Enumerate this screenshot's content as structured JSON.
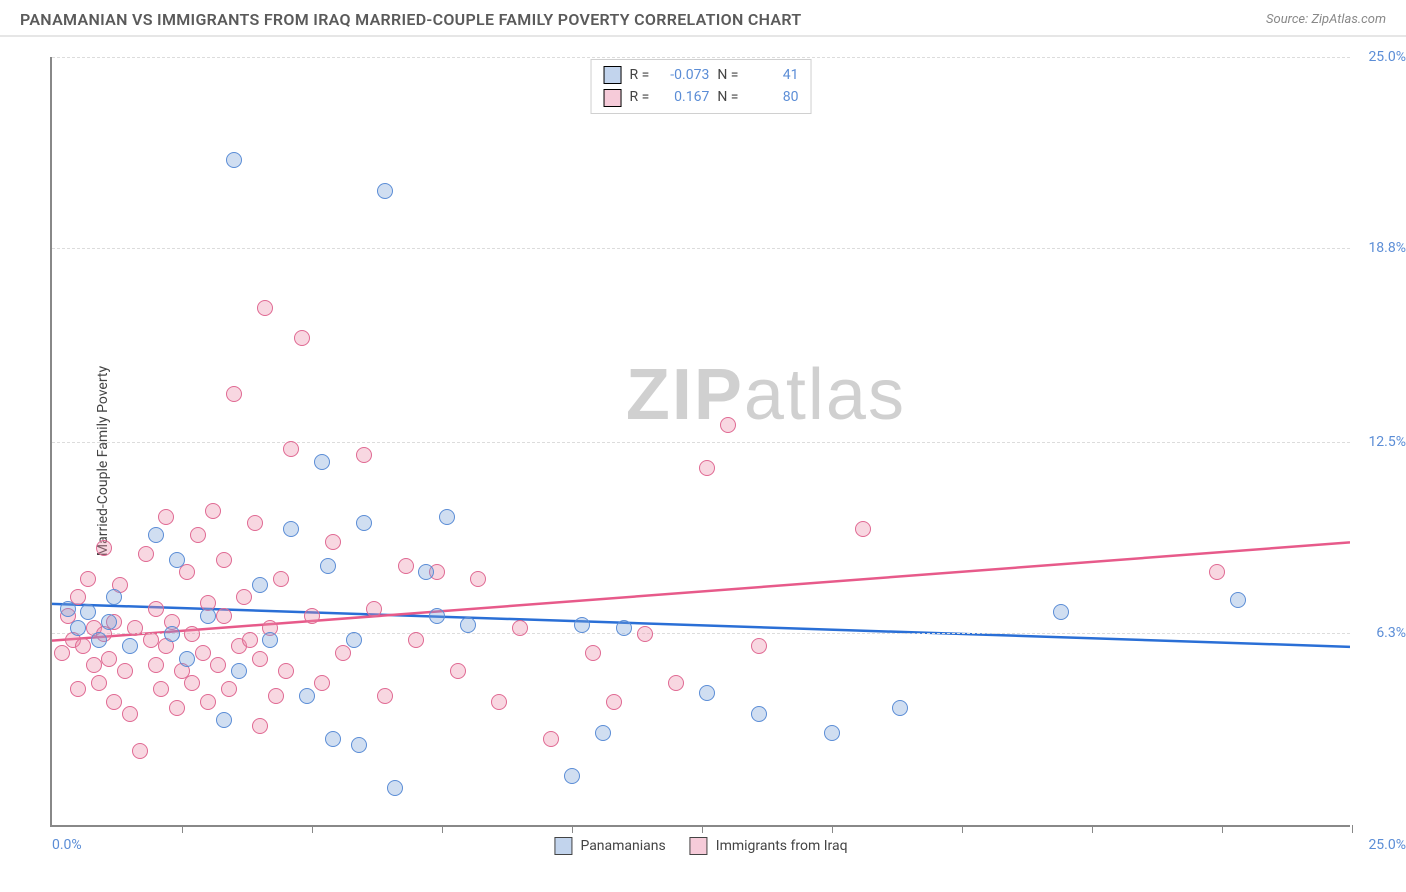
{
  "header": {
    "title": "PANAMANIAN VS IMMIGRANTS FROM IRAQ MARRIED-COUPLE FAMILY POVERTY CORRELATION CHART",
    "source_prefix": "Source: ",
    "source_name": "ZipAtlas.com"
  },
  "watermark": {
    "zip": "ZIP",
    "atlas": "atlas"
  },
  "chart": {
    "type": "scatter",
    "ylabel": "Married-Couple Family Poverty",
    "background_color": "#ffffff",
    "grid_color": "#dcdcdc",
    "axis_color": "#888888",
    "label_color": "#5b8dd6",
    "text_color": "#444444",
    "xlim": [
      0,
      25
    ],
    "ylim": [
      0,
      25
    ],
    "ytick_labels": [
      "6.3%",
      "12.5%",
      "18.8%",
      "25.0%"
    ],
    "ytick_values": [
      6.3,
      12.5,
      18.8,
      25.0
    ],
    "xtick_values": [
      2.5,
      5.0,
      7.5,
      10.0,
      12.5,
      15.0,
      17.5,
      20.0,
      22.5,
      25.0
    ],
    "xtick_start_label": "0.0%",
    "xtick_end_label": "25.0%",
    "marker_size": 16,
    "marker_opacity": 0.35,
    "line_width": 2.5,
    "legend_top": {
      "r_label": "R =",
      "n_label": "N =",
      "row_a": {
        "r": "-0.073",
        "n": "41"
      },
      "row_b": {
        "r": "0.167",
        "n": "80"
      }
    },
    "legend_bottom": {
      "a": "Panamanians",
      "b": "Immigrants from Iraq"
    },
    "series_a": {
      "name": "Panamanians",
      "color_fill": "rgba(120,160,216,0.35)",
      "color_stroke": "#5b8dd6",
      "trend_color": "#2a6fd6",
      "trend_y_at_x0": 7.2,
      "trend_y_at_x25": 5.8,
      "points": [
        [
          0.3,
          7.0
        ],
        [
          0.5,
          6.4
        ],
        [
          0.7,
          6.9
        ],
        [
          0.9,
          6.0
        ],
        [
          1.1,
          6.6
        ],
        [
          1.2,
          7.4
        ],
        [
          2.0,
          9.4
        ],
        [
          2.3,
          6.2
        ],
        [
          2.4,
          8.6
        ],
        [
          2.6,
          5.4
        ],
        [
          3.0,
          6.8
        ],
        [
          3.3,
          3.4
        ],
        [
          3.5,
          21.6
        ],
        [
          3.6,
          5.0
        ],
        [
          4.0,
          7.8
        ],
        [
          4.2,
          6.0
        ],
        [
          4.6,
          9.6
        ],
        [
          5.2,
          11.8
        ],
        [
          5.3,
          8.4
        ],
        [
          5.4,
          2.8
        ],
        [
          5.8,
          6.0
        ],
        [
          5.9,
          2.6
        ],
        [
          6.0,
          9.8
        ],
        [
          6.4,
          20.6
        ],
        [
          6.6,
          1.2
        ],
        [
          7.2,
          8.2
        ],
        [
          7.4,
          6.8
        ],
        [
          7.6,
          10.0
        ],
        [
          8.0,
          6.5
        ],
        [
          10.0,
          1.6
        ],
        [
          10.2,
          6.5
        ],
        [
          10.6,
          3.0
        ],
        [
          11.0,
          6.4
        ],
        [
          12.6,
          4.3
        ],
        [
          13.6,
          3.6
        ],
        [
          15.0,
          3.0
        ],
        [
          16.3,
          3.8
        ],
        [
          19.4,
          6.9
        ],
        [
          22.8,
          7.3
        ],
        [
          4.9,
          4.2
        ],
        [
          1.5,
          5.8
        ]
      ]
    },
    "series_b": {
      "name": "Immigrants from Iraq",
      "color_fill": "rgba(236,140,170,0.35)",
      "color_stroke": "#e06a93",
      "trend_color": "#e75a8a",
      "trend_y_at_x0": 6.0,
      "trend_y_at_x25": 9.2,
      "points": [
        [
          0.2,
          5.6
        ],
        [
          0.3,
          6.8
        ],
        [
          0.4,
          6.0
        ],
        [
          0.5,
          4.4
        ],
        [
          0.5,
          7.4
        ],
        [
          0.6,
          5.8
        ],
        [
          0.7,
          8.0
        ],
        [
          0.8,
          6.4
        ],
        [
          0.8,
          5.2
        ],
        [
          0.9,
          4.6
        ],
        [
          1.0,
          9.0
        ],
        [
          1.0,
          6.2
        ],
        [
          1.1,
          5.4
        ],
        [
          1.2,
          4.0
        ],
        [
          1.2,
          6.6
        ],
        [
          1.3,
          7.8
        ],
        [
          1.4,
          5.0
        ],
        [
          1.5,
          3.6
        ],
        [
          1.6,
          6.4
        ],
        [
          1.7,
          2.4
        ],
        [
          1.8,
          8.8
        ],
        [
          1.9,
          6.0
        ],
        [
          2.0,
          5.2
        ],
        [
          2.0,
          7.0
        ],
        [
          2.1,
          4.4
        ],
        [
          2.2,
          10.0
        ],
        [
          2.2,
          5.8
        ],
        [
          2.3,
          6.6
        ],
        [
          2.4,
          3.8
        ],
        [
          2.5,
          5.0
        ],
        [
          2.6,
          8.2
        ],
        [
          2.7,
          6.2
        ],
        [
          2.7,
          4.6
        ],
        [
          2.8,
          9.4
        ],
        [
          2.9,
          5.6
        ],
        [
          3.0,
          7.2
        ],
        [
          3.0,
          4.0
        ],
        [
          3.1,
          10.2
        ],
        [
          3.2,
          5.2
        ],
        [
          3.3,
          6.8
        ],
        [
          3.3,
          8.6
        ],
        [
          3.4,
          4.4
        ],
        [
          3.5,
          14.0
        ],
        [
          3.6,
          5.8
        ],
        [
          3.7,
          7.4
        ],
        [
          3.8,
          6.0
        ],
        [
          3.9,
          9.8
        ],
        [
          4.0,
          5.4
        ],
        [
          4.1,
          16.8
        ],
        [
          4.2,
          6.4
        ],
        [
          4.3,
          4.2
        ],
        [
          4.4,
          8.0
        ],
        [
          4.5,
          5.0
        ],
        [
          4.6,
          12.2
        ],
        [
          4.8,
          15.8
        ],
        [
          5.0,
          6.8
        ],
        [
          5.2,
          4.6
        ],
        [
          5.4,
          9.2
        ],
        [
          5.6,
          5.6
        ],
        [
          6.0,
          12.0
        ],
        [
          6.2,
          7.0
        ],
        [
          6.4,
          4.2
        ],
        [
          6.8,
          8.4
        ],
        [
          7.0,
          6.0
        ],
        [
          7.4,
          8.2
        ],
        [
          7.8,
          5.0
        ],
        [
          8.2,
          8.0
        ],
        [
          8.6,
          4.0
        ],
        [
          9.0,
          6.4
        ],
        [
          9.6,
          2.8
        ],
        [
          10.4,
          5.6
        ],
        [
          10.8,
          4.0
        ],
        [
          11.4,
          6.2
        ],
        [
          12.0,
          4.6
        ],
        [
          12.6,
          11.6
        ],
        [
          13.0,
          13.0
        ],
        [
          13.6,
          5.8
        ],
        [
          15.6,
          9.6
        ],
        [
          22.4,
          8.2
        ],
        [
          4.0,
          3.2
        ]
      ]
    }
  }
}
